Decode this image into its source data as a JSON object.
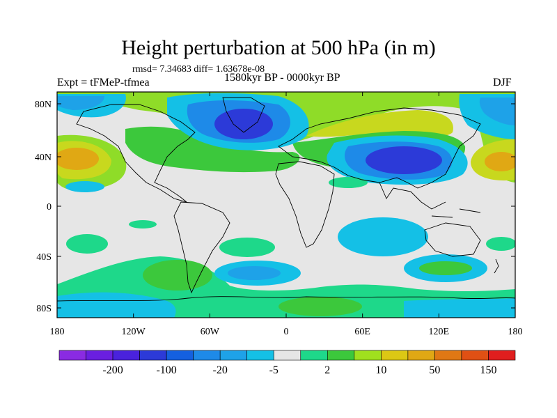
{
  "title": "Height perturbation at 500 hPa (in m)",
  "stats": "rmsd= 7.34683  diff= 1.63678e-08",
  "experiment": "Expt = tFMeP-tfmea",
  "period": "1580kyr BP - 0000kyr BP",
  "season": "DJF",
  "map": {
    "lat_ticks": [
      "80N",
      "40N",
      "0",
      "40S",
      "80S"
    ],
    "lon_ticks": [
      "180",
      "120W",
      "60W",
      "0",
      "60E",
      "120E",
      "180"
    ],
    "background_color": "#e6e6e6",
    "coastline_color": "#000000"
  },
  "colorbar": {
    "colors": [
      "#8a2be2",
      "#6a1fe0",
      "#4a22dd",
      "#2c3ad8",
      "#1460e0",
      "#1e8ae8",
      "#1ea2e8",
      "#14c0e6",
      "#e6e6e6",
      "#1ed88a",
      "#3cc83c",
      "#a0e01e",
      "#dcc814",
      "#e0a814",
      "#e07814",
      "#e05014",
      "#e01e1e"
    ],
    "labels": [
      "-200",
      "-100",
      "-20",
      "-5",
      "2",
      "10",
      "50",
      "150"
    ]
  }
}
